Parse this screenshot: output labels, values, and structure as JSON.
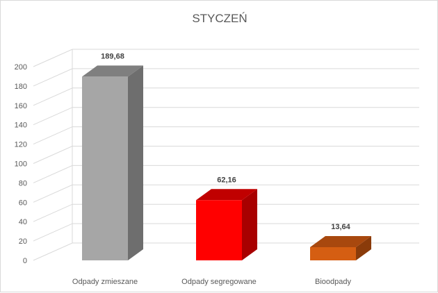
{
  "chart_data": {
    "type": "bar",
    "title": "STYCZEŃ",
    "categories": [
      "Odpady zmieszane",
      "Odpady segregowane",
      "Bioodpady"
    ],
    "values": [
      189.68,
      62.16,
      13.64
    ],
    "data_labels": [
      "189,68",
      "62,16",
      "13,64"
    ],
    "colors": [
      "#a6a6a6",
      "#ff0000",
      "#d55e12"
    ],
    "side_colors": [
      "#6e6e6e",
      "#a80000",
      "#8a3b0a"
    ],
    "top_colors": [
      "#7f7f7f",
      "#c00000",
      "#a8480e"
    ],
    "ylim": [
      0,
      200
    ],
    "yticks": [
      "0",
      "20",
      "40",
      "60",
      "80",
      "100",
      "120",
      "140",
      "160",
      "180",
      "200"
    ],
    "grid": true,
    "style": "3d-column"
  }
}
